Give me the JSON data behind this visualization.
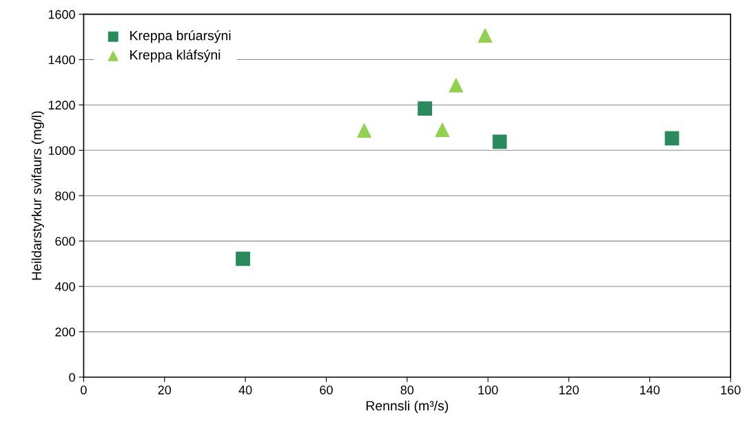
{
  "chart_data": {
    "type": "scatter",
    "xlabel": "Rennsli (m³/s)",
    "ylabel": "Heildarstyrkur svifaurs (mg/l)",
    "xlim": [
      0,
      160
    ],
    "xticks": [
      0,
      20,
      40,
      60,
      80,
      100,
      120,
      140,
      160
    ],
    "ylim": [
      0,
      1600
    ],
    "yticks": [
      0,
      200,
      400,
      600,
      800,
      1000,
      1200,
      1400,
      1600
    ],
    "grid": "y",
    "legend": "top left",
    "series": [
      {
        "name": "Kreppa brúarsýni",
        "color": "#2a8a5e",
        "marker": "square",
        "x": [
          39.4,
          84.4,
          102.9,
          145.5
        ],
        "values": [
          522,
          1184,
          1038,
          1053
        ]
      },
      {
        "name": "Kreppa kláfsýni",
        "color": "#92d050",
        "marker": "triangle",
        "x": [
          69.4,
          88.7,
          92.1,
          99.3
        ],
        "values": [
          1087,
          1090,
          1287,
          1506
        ]
      }
    ]
  }
}
